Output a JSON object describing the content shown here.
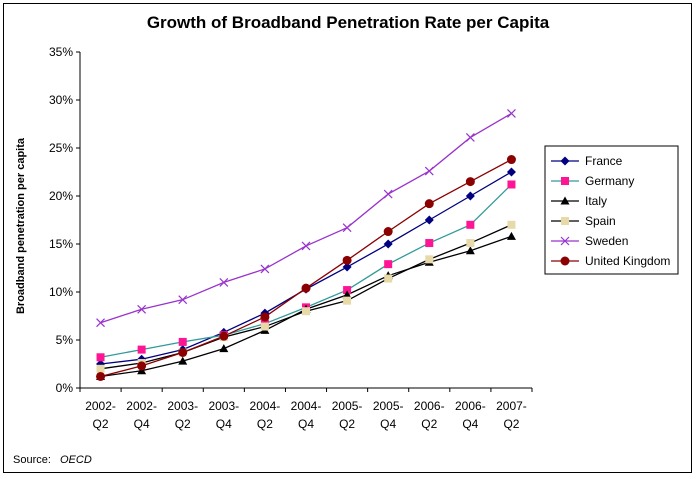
{
  "chart_data": {
    "type": "line",
    "title": "Growth of Broadband Penetration Rate per Capita",
    "xlabel": "",
    "ylabel": "Broadband penetration per capita",
    "source_label": "Source:",
    "source_value": "OECD",
    "categories": [
      [
        "2002-",
        "Q2"
      ],
      [
        "2002-",
        "Q4"
      ],
      [
        "2003-",
        "Q2"
      ],
      [
        "2003-",
        "Q4"
      ],
      [
        "2004-",
        "Q2"
      ],
      [
        "2004-",
        "Q4"
      ],
      [
        "2005-",
        "Q2"
      ],
      [
        "2005-",
        "Q4"
      ],
      [
        "2006-",
        "Q2"
      ],
      [
        "2006-",
        "Q4"
      ],
      [
        "2007-",
        "Q2"
      ]
    ],
    "y_ticks": [
      "0%",
      "5%",
      "10%",
      "15%",
      "20%",
      "25%",
      "30%",
      "35%"
    ],
    "ylim": [
      0,
      35
    ],
    "grid": false,
    "legend_position": "right",
    "series": [
      {
        "name": "France",
        "color": "#000080",
        "marker": "diamond",
        "marker_color": "#000080",
        "values": [
          2.5,
          3.0,
          4.0,
          5.8,
          7.8,
          10.3,
          12.6,
          15.0,
          17.5,
          20.0,
          22.5
        ]
      },
      {
        "name": "Germany",
        "color": "#339999",
        "marker": "square",
        "marker_color": "#ff1493",
        "values": [
          3.2,
          4.0,
          4.8,
          5.5,
          6.7,
          8.4,
          10.2,
          12.9,
          15.1,
          17.0,
          21.2
        ]
      },
      {
        "name": "Italy",
        "color": "#000000",
        "marker": "triangle",
        "marker_color": "#000000",
        "values": [
          1.2,
          1.8,
          2.8,
          4.1,
          6.0,
          8.2,
          9.7,
          11.7,
          13.1,
          14.3,
          15.8
        ]
      },
      {
        "name": "Spain",
        "color": "#000000",
        "marker": "square",
        "marker_color": "#e8d9a8",
        "values": [
          2.0,
          2.6,
          3.7,
          5.3,
          6.4,
          8.0,
          9.1,
          11.4,
          13.4,
          15.1,
          17.0
        ]
      },
      {
        "name": "Sweden",
        "color": "#9933cc",
        "marker": "x",
        "marker_color": "#9933cc",
        "values": [
          6.8,
          8.2,
          9.2,
          11.0,
          12.4,
          14.8,
          16.7,
          20.2,
          22.6,
          26.1,
          28.6
        ]
      },
      {
        "name": "United Kingdom",
        "color": "#8b0000",
        "marker": "circle",
        "marker_color": "#8b0000",
        "values": [
          1.2,
          2.3,
          3.7,
          5.4,
          7.4,
          10.4,
          13.3,
          16.3,
          19.2,
          21.5,
          23.8
        ]
      }
    ]
  }
}
